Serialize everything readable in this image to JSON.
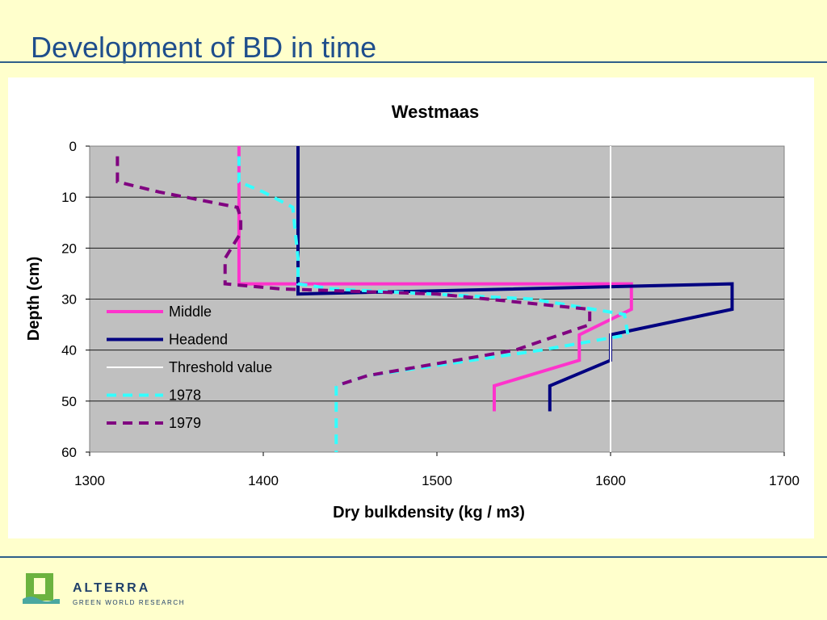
{
  "slide": {
    "title": "Development of BD in time"
  },
  "brand": {
    "name": "ALTERRA",
    "tagline": "GREEN WORLD RESEARCH",
    "logo_icon": "alterra-logo-icon",
    "colors": {
      "dark": "#1f3f6a",
      "green": "#6cb33f",
      "teal": "#4aa8a0"
    }
  },
  "chart_data": {
    "type": "line",
    "title": "Westmaas",
    "xlabel": "Dry bulkdensity (kg / m3)",
    "ylabel": "Depth (cm)",
    "xlim": [
      1300,
      1700
    ],
    "ylim": [
      0,
      60
    ],
    "y_inverted": true,
    "xticks": [
      "1300",
      "1400",
      "1500",
      "1600",
      "1700"
    ],
    "yticks": [
      "0",
      "10",
      "20",
      "30",
      "40",
      "50",
      "60"
    ],
    "grid": "horizontal",
    "plot_background": "#c0c0c0",
    "legend_position": "inside-left",
    "series": [
      {
        "name": "Middle",
        "color": "#ff33cc",
        "style": "solid",
        "points": [
          [
            1386,
            0
          ],
          [
            1386,
            27
          ],
          [
            1612,
            27
          ],
          [
            1612,
            32
          ],
          [
            1582,
            37
          ],
          [
            1582,
            42
          ],
          [
            1533,
            47
          ],
          [
            1533,
            52
          ]
        ]
      },
      {
        "name": "Headend",
        "color": "#000080",
        "style": "solid",
        "points": [
          [
            1420,
            0
          ],
          [
            1420,
            29
          ],
          [
            1670,
            27
          ],
          [
            1670,
            32
          ],
          [
            1600,
            37
          ],
          [
            1600,
            42
          ],
          [
            1565,
            47
          ],
          [
            1565,
            52
          ]
        ]
      },
      {
        "name": "Threshold value",
        "color": "#ffffff",
        "style": "solid",
        "points": [
          [
            1600,
            0
          ],
          [
            1600,
            60
          ]
        ]
      },
      {
        "name": "1978",
        "color": "#33ffff",
        "style": "dashed",
        "points": [
          [
            1386,
            2
          ],
          [
            1386,
            7
          ],
          [
            1400,
            9
          ],
          [
            1417,
            12
          ],
          [
            1420,
            22
          ],
          [
            1420,
            27
          ],
          [
            1440,
            28
          ],
          [
            1555,
            30
          ],
          [
            1608,
            33
          ],
          [
            1610,
            37
          ],
          [
            1560,
            40
          ],
          [
            1460,
            45
          ],
          [
            1442,
            47
          ],
          [
            1442,
            60
          ]
        ]
      },
      {
        "name": "1979",
        "color": "#800080",
        "style": "dashed",
        "points": [
          [
            1316,
            2
          ],
          [
            1316,
            7
          ],
          [
            1340,
            9
          ],
          [
            1385,
            12
          ],
          [
            1387,
            14
          ],
          [
            1387,
            17
          ],
          [
            1378,
            22
          ],
          [
            1378,
            27
          ],
          [
            1410,
            28
          ],
          [
            1500,
            29
          ],
          [
            1588,
            32
          ],
          [
            1588,
            35
          ],
          [
            1545,
            40
          ],
          [
            1460,
            45
          ],
          [
            1442,
            47
          ]
        ]
      }
    ]
  }
}
